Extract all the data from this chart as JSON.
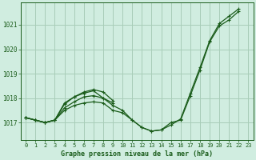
{
  "title": "Graphe pression niveau de la mer (hPa)",
  "bg_color": "#d0ede0",
  "grid_color": "#a8cdb8",
  "line_color": "#1a5c1a",
  "xlim": [
    -0.5,
    23.5
  ],
  "ylim": [
    1016.3,
    1021.9
  ],
  "yticks": [
    1017,
    1018,
    1019,
    1020,
    1021
  ],
  "xticks": [
    0,
    1,
    2,
    3,
    4,
    5,
    6,
    7,
    8,
    9,
    10,
    11,
    12,
    13,
    14,
    15,
    16,
    17,
    18,
    19,
    20,
    21,
    22,
    23
  ],
  "hours_full": [
    0,
    1,
    2,
    3,
    4,
    5,
    6,
    7,
    8,
    9,
    10,
    11,
    12,
    13,
    14,
    15,
    16,
    17,
    18,
    19,
    20,
    21,
    22
  ],
  "hours_short": [
    0,
    1,
    2,
    3,
    4,
    5,
    6,
    7,
    8,
    9
  ],
  "series_A": [
    1017.2,
    1017.1,
    1017.0,
    1017.1,
    1017.5,
    1017.7,
    1017.8,
    1017.85,
    1017.8,
    1017.5,
    1017.4,
    1017.1,
    1016.8,
    1016.65,
    1016.7,
    1017.0,
    1017.1,
    1018.1,
    1019.15,
    1020.3,
    1020.95,
    1021.2,
    1021.55
  ],
  "series_B": [
    1017.2,
    1017.1,
    1017.0,
    1017.1,
    1017.6,
    1017.85,
    1018.05,
    1018.1,
    1018.0,
    1017.7,
    1017.5,
    1017.1,
    1016.8,
    1016.65,
    1016.7,
    1016.9,
    1017.15,
    1018.2,
    1019.25,
    1020.35,
    1021.05,
    1021.35,
    1021.65
  ],
  "series_C": [
    1017.2,
    1017.1,
    1017.0,
    1017.1,
    1017.8,
    1018.05,
    1018.2,
    1018.3,
    1018.0,
    1017.8
  ],
  "series_D": [
    1017.2,
    1017.1,
    1017.0,
    1017.1,
    1017.75,
    1018.05,
    1018.25,
    1018.35,
    1018.25,
    1017.9
  ]
}
